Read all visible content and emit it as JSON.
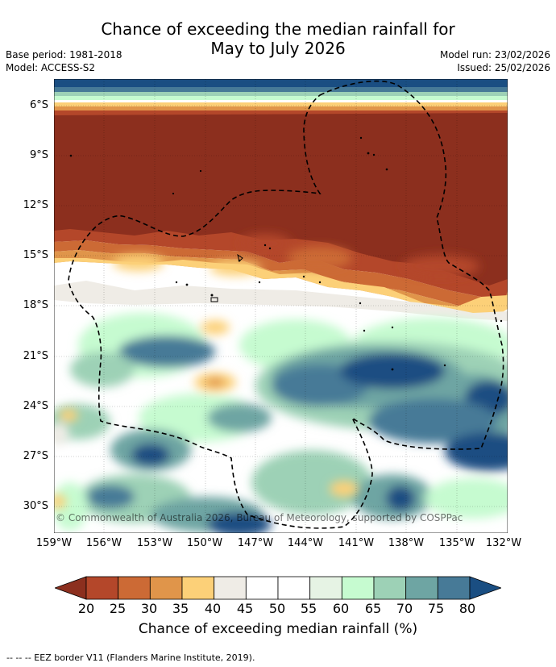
{
  "header": {
    "title_line1": "Chance of exceeding the median rainfall for",
    "title_line2": "May to July 2026",
    "base_period": "Base period: 1981-2018",
    "model": "Model: ACCESS-S2",
    "model_run": "Model run: 23/02/2026",
    "issued": "Issued: 25/02/2026"
  },
  "map": {
    "copyright": "© Commonwealth of Australia 2026, Bureau of Meteorology, supported by COSPPac",
    "lat_labels": [
      "6°S",
      "9°S",
      "12°S",
      "15°S",
      "18°S",
      "21°S",
      "24°S",
      "27°S",
      "30°S"
    ],
    "lon_labels": [
      "159°W",
      "156°W",
      "153°W",
      "150°W",
      "147°W",
      "144°W",
      "141°W",
      "138°W",
      "135°W",
      "132°W"
    ],
    "extent": {
      "lon_min": -159,
      "lon_max": -132,
      "lat_north": -4.5,
      "lat_south": -31.5
    }
  },
  "colorbar": {
    "title": "Chance of exceeding median rainfall (%)",
    "tick_labels": [
      "20",
      "25",
      "30",
      "35",
      "40",
      "45",
      "50",
      "55",
      "60",
      "65",
      "70",
      "75",
      "80"
    ],
    "colors": [
      "#8c2f1e",
      "#b4472a",
      "#cc6a35",
      "#e0954a",
      "#fcd078",
      "#efece6",
      "#ffffff",
      "#ffffff",
      "#e6f3e4",
      "#c6fbd0",
      "#9dd1b6",
      "#6ea5a3",
      "#477a97",
      "#1a4e82"
    ]
  },
  "footer": {
    "note": "--  --  -- EEZ border V11 (Flanders Marine Institute, 2019)."
  }
}
